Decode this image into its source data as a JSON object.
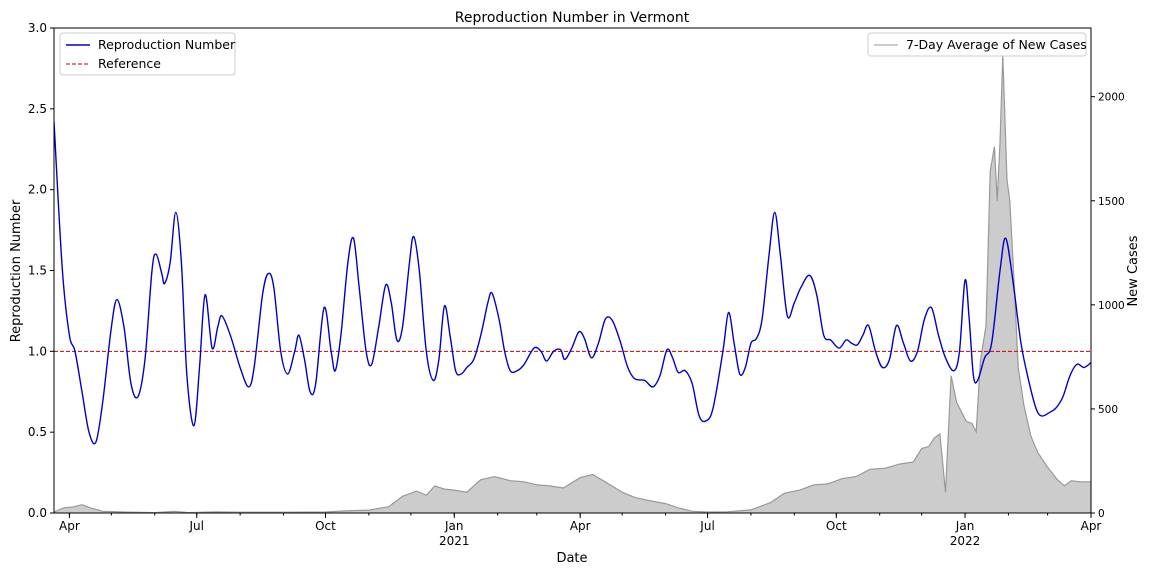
{
  "chart_data": {
    "type": "line",
    "title": "Reproduction Number in Vermont",
    "xlabel": "Date",
    "ylabel": "Reproduction Number",
    "y2label": "New Cases",
    "x_range": [
      "2020-03-21",
      "2022-04-01"
    ],
    "ylim": [
      0,
      3.0
    ],
    "y2lim": [
      0,
      2330
    ],
    "grid": false,
    "x_ticks": [
      {
        "date": "2020-04-01",
        "label": "Apr",
        "sub": ""
      },
      {
        "date": "2020-07-01",
        "label": "Jul",
        "sub": ""
      },
      {
        "date": "2020-10-01",
        "label": "Oct",
        "sub": ""
      },
      {
        "date": "2021-01-01",
        "label": "Jan",
        "sub": "2021"
      },
      {
        "date": "2021-04-01",
        "label": "Apr",
        "sub": ""
      },
      {
        "date": "2021-07-01",
        "label": "Jul",
        "sub": ""
      },
      {
        "date": "2021-10-01",
        "label": "Oct",
        "sub": ""
      },
      {
        "date": "2022-01-01",
        "label": "Jan",
        "sub": "2022"
      },
      {
        "date": "2022-04-01",
        "label": "Apr",
        "sub": ""
      }
    ],
    "y_ticks": [
      "0.0",
      "0.5",
      "1.0",
      "1.5",
      "2.0",
      "2.5",
      "3.0"
    ],
    "y2_ticks": [
      "0",
      "500",
      "1000",
      "1500",
      "2000"
    ],
    "series": [
      {
        "name": "Reproduction Number",
        "axis": "left",
        "color": "#0000cc",
        "style": "solid",
        "points": [
          [
            "2020-03-21",
            2.42
          ],
          [
            "2020-03-27",
            1.5
          ],
          [
            "2020-04-01",
            1.1
          ],
          [
            "2020-04-05",
            1.0
          ],
          [
            "2020-04-10",
            0.75
          ],
          [
            "2020-04-15",
            0.5
          ],
          [
            "2020-04-20",
            0.44
          ],
          [
            "2020-04-25",
            0.7
          ],
          [
            "2020-05-01",
            1.15
          ],
          [
            "2020-05-05",
            1.32
          ],
          [
            "2020-05-10",
            1.15
          ],
          [
            "2020-05-15",
            0.8
          ],
          [
            "2020-05-20",
            0.72
          ],
          [
            "2020-05-25",
            0.95
          ],
          [
            "2020-05-30",
            1.5
          ],
          [
            "2020-06-02",
            1.6
          ],
          [
            "2020-06-06",
            1.48
          ],
          [
            "2020-06-08",
            1.42
          ],
          [
            "2020-06-12",
            1.55
          ],
          [
            "2020-06-16",
            1.86
          ],
          [
            "2020-06-20",
            1.55
          ],
          [
            "2020-06-24",
            0.85
          ],
          [
            "2020-06-29",
            0.54
          ],
          [
            "2020-07-03",
            0.9
          ],
          [
            "2020-07-07",
            1.35
          ],
          [
            "2020-07-12",
            1.02
          ],
          [
            "2020-07-16",
            1.15
          ],
          [
            "2020-07-19",
            1.22
          ],
          [
            "2020-07-25",
            1.1
          ],
          [
            "2020-08-01",
            0.9
          ],
          [
            "2020-08-07",
            0.78
          ],
          [
            "2020-08-11",
            0.9
          ],
          [
            "2020-08-17",
            1.35
          ],
          [
            "2020-08-21",
            1.48
          ],
          [
            "2020-08-25",
            1.4
          ],
          [
            "2020-08-30",
            1.0
          ],
          [
            "2020-09-04",
            0.86
          ],
          [
            "2020-09-09",
            1.0
          ],
          [
            "2020-09-12",
            1.1
          ],
          [
            "2020-09-16",
            0.95
          ],
          [
            "2020-09-20",
            0.75
          ],
          [
            "2020-09-24",
            0.8
          ],
          [
            "2020-09-30",
            1.27
          ],
          [
            "2020-10-05",
            1.0
          ],
          [
            "2020-10-08",
            0.88
          ],
          [
            "2020-10-12",
            1.1
          ],
          [
            "2020-10-17",
            1.55
          ],
          [
            "2020-10-21",
            1.7
          ],
          [
            "2020-10-25",
            1.4
          ],
          [
            "2020-10-30",
            1.0
          ],
          [
            "2020-11-03",
            0.92
          ],
          [
            "2020-11-08",
            1.15
          ],
          [
            "2020-11-13",
            1.41
          ],
          [
            "2020-11-17",
            1.3
          ],
          [
            "2020-11-21",
            1.07
          ],
          [
            "2020-11-25",
            1.15
          ],
          [
            "2020-11-30",
            1.55
          ],
          [
            "2020-12-03",
            1.71
          ],
          [
            "2020-12-07",
            1.5
          ],
          [
            "2020-12-12",
            1.0
          ],
          [
            "2020-12-17",
            0.82
          ],
          [
            "2020-12-21",
            0.95
          ],
          [
            "2020-12-25",
            1.28
          ],
          [
            "2020-12-29",
            1.1
          ],
          [
            "2021-01-02",
            0.88
          ],
          [
            "2021-01-06",
            0.86
          ],
          [
            "2021-01-10",
            0.9
          ],
          [
            "2021-01-15",
            0.95
          ],
          [
            "2021-01-20",
            1.1
          ],
          [
            "2021-01-25",
            1.3
          ],
          [
            "2021-01-28",
            1.36
          ],
          [
            "2021-02-02",
            1.2
          ],
          [
            "2021-02-06",
            1.0
          ],
          [
            "2021-02-10",
            0.88
          ],
          [
            "2021-02-15",
            0.88
          ],
          [
            "2021-02-20",
            0.92
          ],
          [
            "2021-02-27",
            1.02
          ],
          [
            "2021-03-04",
            1.0
          ],
          [
            "2021-03-08",
            0.94
          ],
          [
            "2021-03-13",
            1.0
          ],
          [
            "2021-03-18",
            1.01
          ],
          [
            "2021-03-21",
            0.95
          ],
          [
            "2021-03-26",
            1.02
          ],
          [
            "2021-03-31",
            1.12
          ],
          [
            "2021-04-04",
            1.08
          ],
          [
            "2021-04-09",
            0.96
          ],
          [
            "2021-04-14",
            1.05
          ],
          [
            "2021-04-19",
            1.2
          ],
          [
            "2021-04-24",
            1.19
          ],
          [
            "2021-04-30",
            1.05
          ],
          [
            "2021-05-05",
            0.9
          ],
          [
            "2021-05-10",
            0.83
          ],
          [
            "2021-05-17",
            0.82
          ],
          [
            "2021-05-23",
            0.78
          ],
          [
            "2021-05-28",
            0.85
          ],
          [
            "2021-06-02",
            1.01
          ],
          [
            "2021-06-06",
            0.96
          ],
          [
            "2021-06-10",
            0.87
          ],
          [
            "2021-06-15",
            0.88
          ],
          [
            "2021-06-20",
            0.8
          ],
          [
            "2021-06-25",
            0.6
          ],
          [
            "2021-06-30",
            0.57
          ],
          [
            "2021-07-05",
            0.65
          ],
          [
            "2021-07-12",
            1.0
          ],
          [
            "2021-07-16",
            1.24
          ],
          [
            "2021-07-20",
            1.05
          ],
          [
            "2021-07-24",
            0.86
          ],
          [
            "2021-07-28",
            0.9
          ],
          [
            "2021-08-01",
            1.05
          ],
          [
            "2021-08-05",
            1.08
          ],
          [
            "2021-08-09",
            1.2
          ],
          [
            "2021-08-14",
            1.6
          ],
          [
            "2021-08-18",
            1.86
          ],
          [
            "2021-08-22",
            1.6
          ],
          [
            "2021-08-27",
            1.22
          ],
          [
            "2021-09-01",
            1.3
          ],
          [
            "2021-09-06",
            1.4
          ],
          [
            "2021-09-12",
            1.47
          ],
          [
            "2021-09-17",
            1.35
          ],
          [
            "2021-09-22",
            1.1
          ],
          [
            "2021-09-27",
            1.07
          ],
          [
            "2021-10-03",
            1.02
          ],
          [
            "2021-10-08",
            1.07
          ],
          [
            "2021-10-12",
            1.05
          ],
          [
            "2021-10-16",
            1.04
          ],
          [
            "2021-10-20",
            1.1
          ],
          [
            "2021-10-24",
            1.16
          ],
          [
            "2021-10-29",
            1.0
          ],
          [
            "2021-11-03",
            0.9
          ],
          [
            "2021-11-08",
            0.95
          ],
          [
            "2021-11-13",
            1.16
          ],
          [
            "2021-11-18",
            1.05
          ],
          [
            "2021-11-23",
            0.94
          ],
          [
            "2021-11-28",
            1.0
          ],
          [
            "2021-12-03",
            1.2
          ],
          [
            "2021-12-08",
            1.27
          ],
          [
            "2021-12-13",
            1.1
          ],
          [
            "2021-12-18",
            0.96
          ],
          [
            "2021-12-24",
            0.88
          ],
          [
            "2021-12-28",
            1.0
          ],
          [
            "2022-01-01",
            1.44
          ],
          [
            "2022-01-04",
            1.2
          ],
          [
            "2022-01-07",
            0.85
          ],
          [
            "2022-01-10",
            0.82
          ],
          [
            "2022-01-15",
            0.96
          ],
          [
            "2022-01-20",
            1.05
          ],
          [
            "2022-01-26",
            1.5
          ],
          [
            "2022-01-30",
            1.7
          ],
          [
            "2022-02-04",
            1.45
          ],
          [
            "2022-02-10",
            1.05
          ],
          [
            "2022-02-16",
            0.8
          ],
          [
            "2022-02-21",
            0.64
          ],
          [
            "2022-02-25",
            0.6
          ],
          [
            "2022-03-02",
            0.62
          ],
          [
            "2022-03-07",
            0.65
          ],
          [
            "2022-03-12",
            0.72
          ],
          [
            "2022-03-17",
            0.85
          ],
          [
            "2022-03-22",
            0.92
          ],
          [
            "2022-03-27",
            0.9
          ],
          [
            "2022-04-01",
            0.93
          ]
        ]
      },
      {
        "name": "Reference",
        "axis": "left",
        "color": "#cc0000",
        "style": "dashed",
        "value": 1.0
      },
      {
        "name": "7-Day Average of New Cases",
        "axis": "right",
        "color": "#999999",
        "fill": "#cccccc",
        "style": "area",
        "points": [
          [
            "2020-03-21",
            5
          ],
          [
            "2020-03-28",
            25
          ],
          [
            "2020-04-04",
            30
          ],
          [
            "2020-04-10",
            40
          ],
          [
            "2020-04-16",
            25
          ],
          [
            "2020-04-25",
            8
          ],
          [
            "2020-05-10",
            5
          ],
          [
            "2020-06-01",
            2
          ],
          [
            "2020-06-15",
            8
          ],
          [
            "2020-06-25",
            2
          ],
          [
            "2020-07-15",
            6
          ],
          [
            "2020-08-01",
            4
          ],
          [
            "2020-09-01",
            4
          ],
          [
            "2020-10-01",
            5
          ],
          [
            "2020-10-15",
            10
          ],
          [
            "2020-11-01",
            14
          ],
          [
            "2020-11-15",
            30
          ],
          [
            "2020-11-25",
            80
          ],
          [
            "2020-12-05",
            105
          ],
          [
            "2020-12-12",
            85
          ],
          [
            "2020-12-18",
            130
          ],
          [
            "2020-12-25",
            115
          ],
          [
            "2021-01-01",
            110
          ],
          [
            "2021-01-10",
            100
          ],
          [
            "2021-01-20",
            160
          ],
          [
            "2021-01-30",
            175
          ],
          [
            "2021-02-10",
            155
          ],
          [
            "2021-02-20",
            150
          ],
          [
            "2021-03-01",
            135
          ],
          [
            "2021-03-10",
            130
          ],
          [
            "2021-03-20",
            120
          ],
          [
            "2021-04-01",
            170
          ],
          [
            "2021-04-10",
            185
          ],
          [
            "2021-04-20",
            145
          ],
          [
            "2021-05-01",
            100
          ],
          [
            "2021-05-10",
            75
          ],
          [
            "2021-05-20",
            60
          ],
          [
            "2021-06-01",
            45
          ],
          [
            "2021-06-10",
            25
          ],
          [
            "2021-06-20",
            8
          ],
          [
            "2021-07-01",
            5
          ],
          [
            "2021-07-15",
            6
          ],
          [
            "2021-08-01",
            15
          ],
          [
            "2021-08-15",
            50
          ],
          [
            "2021-08-25",
            95
          ],
          [
            "2021-09-05",
            110
          ],
          [
            "2021-09-15",
            135
          ],
          [
            "2021-09-25",
            140
          ],
          [
            "2021-10-05",
            165
          ],
          [
            "2021-10-15",
            175
          ],
          [
            "2021-10-25",
            210
          ],
          [
            "2021-11-05",
            215
          ],
          [
            "2021-11-15",
            235
          ],
          [
            "2021-11-25",
            245
          ],
          [
            "2021-12-01",
            310
          ],
          [
            "2021-12-06",
            320
          ],
          [
            "2021-12-10",
            360
          ],
          [
            "2021-12-14",
            380
          ],
          [
            "2021-12-18",
            100
          ],
          [
            "2021-12-22",
            660
          ],
          [
            "2021-12-26",
            530
          ],
          [
            "2022-01-02",
            440
          ],
          [
            "2022-01-06",
            430
          ],
          [
            "2022-01-09",
            390
          ],
          [
            "2022-01-12",
            730
          ],
          [
            "2022-01-16",
            900
          ],
          [
            "2022-01-19",
            1640
          ],
          [
            "2022-01-22",
            1760
          ],
          [
            "2022-01-24",
            1500
          ],
          [
            "2022-01-26",
            1780
          ],
          [
            "2022-01-28",
            2200
          ],
          [
            "2022-01-31",
            1600
          ],
          [
            "2022-02-02",
            1500
          ],
          [
            "2022-02-05",
            1120
          ],
          [
            "2022-02-08",
            700
          ],
          [
            "2022-02-12",
            520
          ],
          [
            "2022-02-17",
            370
          ],
          [
            "2022-02-22",
            290
          ],
          [
            "2022-03-01",
            220
          ],
          [
            "2022-03-08",
            160
          ],
          [
            "2022-03-13",
            130
          ],
          [
            "2022-03-18",
            155
          ],
          [
            "2022-03-24",
            150
          ],
          [
            "2022-04-01",
            150
          ]
        ]
      }
    ],
    "legend_left_placement": "upper-left",
    "legend_right_placement": "upper-right"
  }
}
